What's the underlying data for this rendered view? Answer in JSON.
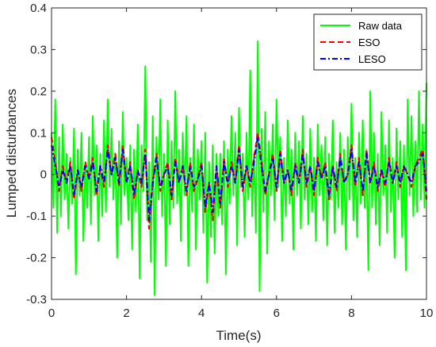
{
  "chart_data": {
    "type": "line",
    "title": "",
    "xlabel": "Time(s)",
    "ylabel": "Lumped disturbances",
    "xlim": [
      0,
      10
    ],
    "ylim": [
      -0.3,
      0.4
    ],
    "xticks": [
      "0",
      "2",
      "4",
      "6",
      "8",
      "10"
    ],
    "yticks": [
      "-0.3",
      "-0.2",
      "-0.1",
      "0",
      "0.1",
      "0.2",
      "0.3",
      "0.4"
    ],
    "grid": false,
    "legend_position": "top-right",
    "series": [
      {
        "name": "Raw data",
        "color": "#00ff00",
        "style": "solid",
        "x": [
          0.0,
          0.05,
          0.1,
          0.15,
          0.2,
          0.25,
          0.3,
          0.35,
          0.4,
          0.45,
          0.5,
          0.55,
          0.6,
          0.65,
          0.7,
          0.75,
          0.8,
          0.85,
          0.9,
          0.95,
          1.0,
          1.05,
          1.1,
          1.15,
          1.2,
          1.25,
          1.3,
          1.35,
          1.4,
          1.45,
          1.5,
          1.55,
          1.6,
          1.65,
          1.7,
          1.75,
          1.8,
          1.85,
          1.9,
          1.95,
          2.0,
          2.05,
          2.1,
          2.15,
          2.2,
          2.25,
          2.3,
          2.35,
          2.4,
          2.45,
          2.5,
          2.55,
          2.6,
          2.65,
          2.7,
          2.75,
          2.8,
          2.85,
          2.9,
          2.95,
          3.0,
          3.05,
          3.1,
          3.15,
          3.2,
          3.25,
          3.3,
          3.35,
          3.4,
          3.45,
          3.5,
          3.55,
          3.6,
          3.65,
          3.7,
          3.75,
          3.8,
          3.85,
          3.9,
          3.95,
          4.0,
          4.05,
          4.1,
          4.15,
          4.2,
          4.25,
          4.3,
          4.35,
          4.4,
          4.45,
          4.5,
          4.55,
          4.6,
          4.65,
          4.7,
          4.75,
          4.8,
          4.85,
          4.9,
          4.95,
          5.0,
          5.05,
          5.1,
          5.15,
          5.2,
          5.25,
          5.3,
          5.35,
          5.4,
          5.45,
          5.5,
          5.55,
          5.6,
          5.65,
          5.7,
          5.75,
          5.8,
          5.85,
          5.9,
          5.95,
          6.0,
          6.05,
          6.1,
          6.15,
          6.2,
          6.25,
          6.3,
          6.35,
          6.4,
          6.45,
          6.5,
          6.55,
          6.6,
          6.65,
          6.7,
          6.75,
          6.8,
          6.85,
          6.9,
          6.95,
          7.0,
          7.05,
          7.1,
          7.15,
          7.2,
          7.25,
          7.3,
          7.35,
          7.4,
          7.45,
          7.5,
          7.55,
          7.6,
          7.65,
          7.7,
          7.75,
          7.8,
          7.85,
          7.9,
          7.95,
          8.0,
          8.05,
          8.1,
          8.15,
          8.2,
          8.25,
          8.3,
          8.35,
          8.4,
          8.45,
          8.5,
          8.55,
          8.6,
          8.65,
          8.7,
          8.75,
          8.8,
          8.85,
          8.9,
          8.95,
          9.0,
          9.05,
          9.1,
          9.15,
          9.2,
          9.25,
          9.3,
          9.35,
          9.4,
          9.45,
          9.5,
          9.55,
          9.6,
          9.65,
          9.7,
          9.75,
          9.8,
          9.85,
          9.9,
          9.95,
          10.0
        ],
        "y": [
          0.1,
          -0.08,
          0.18,
          -0.14,
          0.09,
          -0.1,
          0.12,
          -0.06,
          0.05,
          -0.13,
          0.04,
          -0.07,
          0.11,
          -0.24,
          0.06,
          -0.05,
          0.1,
          -0.16,
          0.03,
          -0.08,
          0.09,
          -0.12,
          0.14,
          -0.05,
          0.07,
          -0.16,
          0.05,
          -0.1,
          0.13,
          -0.09,
          0.18,
          -0.03,
          0.11,
          -0.06,
          0.05,
          -0.2,
          0.08,
          -0.12,
          0.15,
          -0.05,
          0.04,
          -0.11,
          0.07,
          -0.18,
          0.06,
          -0.09,
          0.12,
          -0.25,
          0.07,
          -0.04,
          0.26,
          -0.11,
          0.03,
          -0.21,
          0.14,
          -0.29,
          0.09,
          -0.06,
          0.18,
          -0.1,
          0.05,
          -0.22,
          0.13,
          -0.12,
          0.08,
          -0.08,
          0.2,
          -0.07,
          0.06,
          -0.16,
          0.1,
          -0.05,
          0.14,
          -0.22,
          0.04,
          -0.09,
          0.12,
          -0.18,
          0.06,
          -0.06,
          0.08,
          -0.14,
          0.1,
          -0.26,
          0.03,
          -0.15,
          0.07,
          -0.19,
          0.05,
          -0.1,
          0.05,
          -0.12,
          0.08,
          -0.24,
          0.06,
          -0.07,
          0.14,
          -0.05,
          0.1,
          -0.17,
          0.16,
          -0.03,
          0.05,
          -0.15,
          0.1,
          -0.06,
          0.25,
          -0.1,
          0.05,
          -0.14,
          0.32,
          -0.28,
          0.11,
          -0.09,
          0.15,
          -0.19,
          0.08,
          -0.05,
          0.12,
          -0.11,
          0.18,
          -0.03,
          0.09,
          -0.16,
          0.04,
          -0.1,
          0.13,
          -0.07,
          0.06,
          -0.18,
          0.1,
          -0.05,
          0.08,
          -0.13,
          0.14,
          -0.06,
          0.05,
          -0.12,
          0.11,
          -0.09,
          0.04,
          -0.16,
          0.12,
          -0.05,
          0.07,
          -0.11,
          0.09,
          -0.17,
          0.05,
          -0.06,
          0.13,
          -0.14,
          0.03,
          -0.08,
          0.1,
          -0.12,
          0.06,
          -0.18,
          0.09,
          -0.06,
          0.17,
          -0.11,
          0.04,
          -0.15,
          0.1,
          -0.07,
          0.13,
          -0.08,
          0.06,
          -0.23,
          0.2,
          -0.08,
          0.1,
          -0.12,
          0.05,
          -0.17,
          0.15,
          -0.05,
          0.07,
          -0.14,
          0.13,
          -0.09,
          0.04,
          -0.2,
          0.11,
          -0.06,
          0.08,
          -0.15,
          0.07,
          -0.23,
          0.18,
          -0.05,
          0.14,
          -0.1,
          0.08,
          -0.09,
          0.2,
          -0.06,
          0.12,
          -0.08,
          0.22
        ]
      },
      {
        "name": "ESO",
        "color": "#ff0000",
        "style": "dashed",
        "x": [
          0.0,
          0.1,
          0.2,
          0.3,
          0.4,
          0.5,
          0.6,
          0.7,
          0.8,
          0.9,
          1.0,
          1.1,
          1.2,
          1.3,
          1.4,
          1.5,
          1.6,
          1.7,
          1.8,
          1.9,
          2.0,
          2.1,
          2.2,
          2.3,
          2.4,
          2.5,
          2.6,
          2.7,
          2.8,
          2.9,
          3.0,
          3.1,
          3.2,
          3.3,
          3.4,
          3.5,
          3.6,
          3.7,
          3.8,
          3.9,
          4.0,
          4.1,
          4.2,
          4.3,
          4.4,
          4.5,
          4.6,
          4.7,
          4.8,
          4.9,
          5.0,
          5.1,
          5.2,
          5.3,
          5.4,
          5.5,
          5.6,
          5.7,
          5.8,
          5.9,
          6.0,
          6.1,
          6.2,
          6.3,
          6.4,
          6.5,
          6.6,
          6.7,
          6.8,
          6.9,
          7.0,
          7.1,
          7.2,
          7.3,
          7.4,
          7.5,
          7.6,
          7.7,
          7.8,
          7.9,
          8.0,
          8.1,
          8.2,
          8.3,
          8.4,
          8.5,
          8.6,
          8.7,
          8.8,
          8.9,
          9.0,
          9.1,
          9.2,
          9.3,
          9.4,
          9.5,
          9.6,
          9.7,
          9.8,
          9.9,
          10.0
        ],
        "y": [
          0.09,
          0.03,
          -0.04,
          0.02,
          -0.02,
          0.03,
          -0.06,
          0.01,
          -0.04,
          0.03,
          -0.01,
          0.04,
          -0.05,
          0.02,
          -0.03,
          0.07,
          0.0,
          0.05,
          -0.03,
          0.07,
          -0.02,
          0.03,
          -0.06,
          0.01,
          -0.03,
          0.06,
          -0.13,
          -0.02,
          0.05,
          -0.04,
          0.0,
          0.03,
          -0.06,
          0.04,
          -0.02,
          0.02,
          -0.05,
          0.03,
          -0.04,
          -0.01,
          0.03,
          -0.09,
          -0.02,
          -0.11,
          0.02,
          -0.08,
          0.04,
          -0.03,
          0.03,
          -0.02,
          0.07,
          -0.04,
          0.02,
          -0.03,
          0.04,
          0.1,
          0.03,
          -0.05,
          0.0,
          0.05,
          -0.04,
          0.06,
          -0.02,
          0.01,
          -0.05,
          0.03,
          -0.02,
          0.06,
          -0.03,
          0.02,
          -0.05,
          0.04,
          -0.01,
          0.03,
          -0.06,
          0.02,
          -0.04,
          0.05,
          -0.02,
          0.0,
          0.07,
          -0.03,
          0.04,
          -0.05,
          0.06,
          -0.02,
          0.03,
          -0.04,
          0.01,
          -0.03,
          0.04,
          -0.02,
          0.03,
          -0.03,
          0.02,
          0.0,
          -0.03,
          0.02,
          0.04,
          0.06,
          -0.06
        ]
      },
      {
        "name": "LESO",
        "color": "#0000ff",
        "style": "dashdot",
        "x": [
          0.0,
          0.1,
          0.2,
          0.3,
          0.4,
          0.5,
          0.6,
          0.7,
          0.8,
          0.9,
          1.0,
          1.1,
          1.2,
          1.3,
          1.4,
          1.5,
          1.6,
          1.7,
          1.8,
          1.9,
          2.0,
          2.1,
          2.2,
          2.3,
          2.4,
          2.5,
          2.6,
          2.7,
          2.8,
          2.9,
          3.0,
          3.1,
          3.2,
          3.3,
          3.4,
          3.5,
          3.6,
          3.7,
          3.8,
          3.9,
          4.0,
          4.1,
          4.2,
          4.3,
          4.4,
          4.5,
          4.6,
          4.7,
          4.8,
          4.9,
          5.0,
          5.1,
          5.2,
          5.3,
          5.4,
          5.5,
          5.6,
          5.7,
          5.8,
          5.9,
          6.0,
          6.1,
          6.2,
          6.3,
          6.4,
          6.5,
          6.6,
          6.7,
          6.8,
          6.9,
          7.0,
          7.1,
          7.2,
          7.3,
          7.4,
          7.5,
          7.6,
          7.7,
          7.8,
          7.9,
          8.0,
          8.1,
          8.2,
          8.3,
          8.4,
          8.5,
          8.6,
          8.7,
          8.8,
          8.9,
          9.0,
          9.1,
          9.2,
          9.3,
          9.4,
          9.5,
          9.6,
          9.7,
          9.8,
          9.9,
          10.0
        ],
        "y": [
          0.07,
          0.02,
          -0.03,
          0.01,
          -0.02,
          0.02,
          -0.05,
          0.01,
          -0.03,
          0.02,
          -0.01,
          0.03,
          -0.04,
          0.02,
          -0.02,
          0.06,
          0.0,
          0.04,
          -0.02,
          0.06,
          -0.02,
          0.02,
          -0.05,
          0.01,
          -0.02,
          0.05,
          -0.11,
          -0.02,
          0.04,
          -0.03,
          0.0,
          0.02,
          -0.05,
          0.03,
          -0.02,
          0.02,
          -0.04,
          0.02,
          -0.03,
          -0.01,
          0.02,
          -0.08,
          -0.02,
          -0.09,
          0.02,
          -0.07,
          0.03,
          -0.02,
          0.02,
          -0.02,
          0.06,
          -0.03,
          0.02,
          -0.02,
          0.03,
          0.09,
          0.02,
          -0.04,
          0.0,
          0.04,
          -0.03,
          0.05,
          -0.02,
          0.01,
          -0.04,
          0.02,
          -0.02,
          0.05,
          -0.02,
          0.02,
          -0.04,
          0.03,
          -0.01,
          0.02,
          -0.05,
          0.02,
          -0.03,
          0.04,
          -0.02,
          0.0,
          0.06,
          -0.02,
          0.03,
          -0.04,
          0.05,
          -0.02,
          0.02,
          -0.03,
          0.01,
          -0.02,
          0.03,
          -0.02,
          0.02,
          -0.02,
          0.02,
          0.0,
          -0.02,
          0.02,
          0.03,
          0.05,
          -0.04
        ]
      }
    ]
  }
}
